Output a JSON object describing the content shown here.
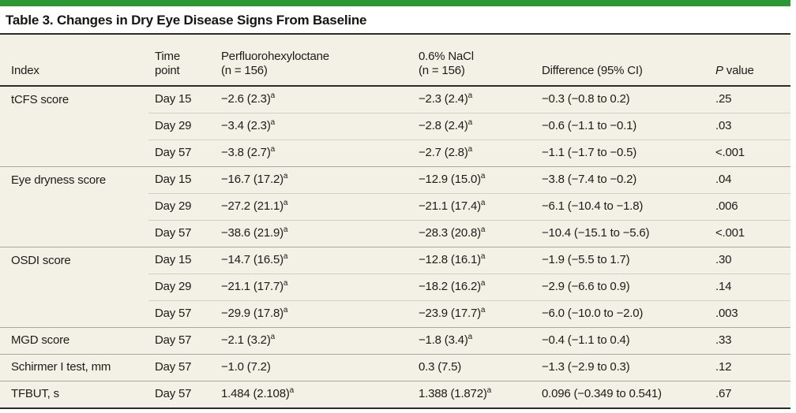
{
  "page": {
    "title": "Table 3. Changes in Dry Eye Disease Signs From Baseline",
    "accent_color": "#2b9834",
    "table_background": "#f3f0e5",
    "rule_color": "#2e2c28"
  },
  "table": {
    "columns": {
      "index": "Index",
      "time": "Time\npoint",
      "drug": "Perfluorohexyloctane\n(n = 156)",
      "nacl": "0.6% NaCl\n(n = 156)",
      "diff": "Difference (95% CI)",
      "p_italic": "P",
      "p_rest": " value"
    },
    "footnote_marker": "a",
    "rows": [
      {
        "type": "first",
        "index": "tCFS score",
        "time": "Day 15",
        "drug": "−2.6 (2.3)",
        "drug_sup": "a",
        "nacl": "−2.3 (2.4)",
        "nacl_sup": "a",
        "diff": "−0.3 (−0.8 to 0.2)",
        "p": ".25"
      },
      {
        "type": "sub",
        "index": "",
        "time": "Day 29",
        "drug": "−3.4 (2.3)",
        "drug_sup": "a",
        "nacl": "−2.8 (2.4)",
        "nacl_sup": "a",
        "diff": "−0.6 (−1.1 to −0.1)",
        "p": ".03"
      },
      {
        "type": "sub",
        "index": "",
        "time": "Day 57",
        "drug": "−3.8 (2.7)",
        "drug_sup": "a",
        "nacl": "−2.7 (2.8)",
        "nacl_sup": "a",
        "diff": "−1.1 (−1.7 to −0.5)",
        "p": "<.001"
      },
      {
        "type": "group",
        "index": "Eye dryness score",
        "time": "Day 15",
        "drug": "−16.7 (17.2)",
        "drug_sup": "a",
        "nacl": "−12.9 (15.0)",
        "nacl_sup": "a",
        "diff": "−3.8 (−7.4 to −0.2)",
        "p": ".04"
      },
      {
        "type": "sub",
        "index": "",
        "time": "Day 29",
        "drug": "−27.2 (21.1)",
        "drug_sup": "a",
        "nacl": "−21.1 (17.4)",
        "nacl_sup": "a",
        "diff": "−6.1 (−10.4 to −1.8)",
        "p": ".006"
      },
      {
        "type": "sub",
        "index": "",
        "time": "Day 57",
        "drug": "−38.6 (21.9)",
        "drug_sup": "a",
        "nacl": "−28.3 (20.8)",
        "nacl_sup": "a",
        "diff": "−10.4 (−15.1 to −5.6)",
        "p": "<.001"
      },
      {
        "type": "group",
        "index": "OSDI score",
        "time": "Day 15",
        "drug": "−14.7 (16.5)",
        "drug_sup": "a",
        "nacl": "−12.8 (16.1)",
        "nacl_sup": "a",
        "diff": "−1.9 (−5.5 to 1.7)",
        "p": ".30"
      },
      {
        "type": "sub",
        "index": "",
        "time": "Day 29",
        "drug": "−21.1 (17.7)",
        "drug_sup": "a",
        "nacl": "−18.2 (16.2)",
        "nacl_sup": "a",
        "diff": "−2.9 (−6.6 to 0.9)",
        "p": ".14"
      },
      {
        "type": "sub",
        "index": "",
        "time": "Day 57",
        "drug": "−29.9 (17.8)",
        "drug_sup": "a",
        "nacl": "−23.9 (17.7)",
        "nacl_sup": "a",
        "diff": "−6.0 (−10.0 to −2.0)",
        "p": ".003"
      },
      {
        "type": "group",
        "index": "MGD score",
        "time": "Day 57",
        "drug": "−2.1 (3.2)",
        "drug_sup": "a",
        "nacl": "−1.8 (3.4)",
        "nacl_sup": "a",
        "diff": "−0.4 (−1.1 to 0.4)",
        "p": ".33"
      },
      {
        "type": "group",
        "index": "Schirmer I test, mm",
        "time": "Day 57",
        "drug": "−1.0 (7.2)",
        "drug_sup": "",
        "nacl": "0.3 (7.5)",
        "nacl_sup": "",
        "diff": "−1.3 (−2.9 to 0.3)",
        "p": ".12"
      },
      {
        "type": "group",
        "index": "TFBUT, s",
        "time": "Day 57",
        "drug": "1.484 (2.108)",
        "drug_sup": "a",
        "nacl": "1.388 (1.872)",
        "nacl_sup": "a",
        "diff": "0.096 (−0.349 to 0.541)",
        "p": ".67"
      }
    ]
  }
}
